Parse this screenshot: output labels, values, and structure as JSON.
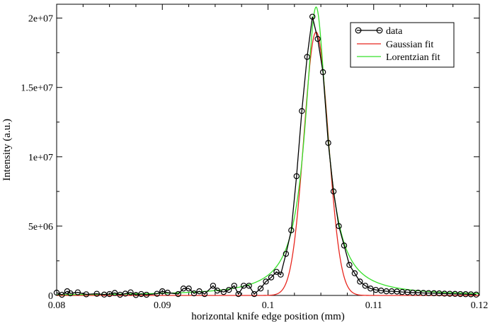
{
  "chart_data": {
    "type": "line",
    "xlabel": "horizontal knife edge position (mm)",
    "ylabel": "Intensity (a.u.)",
    "xlim": [
      0.08,
      0.12
    ],
    "ylim": [
      0,
      21000000
    ],
    "x_ticks": [
      0.08,
      0.09,
      0.1,
      0.11,
      0.12
    ],
    "x_tick_labels": [
      "0.08",
      "0.09",
      "0.1",
      "0.11",
      "0.12"
    ],
    "y_ticks": [
      0,
      5000000,
      10000000,
      15000000,
      20000000
    ],
    "y_tick_labels": [
      "0",
      "5e+06",
      "1e+07",
      "1.5e+07",
      "2e+07"
    ],
    "grid": false,
    "legend_position": "top-right",
    "series": [
      {
        "name": "data",
        "style": "line-with-circle-markers",
        "color": "#000000",
        "points": [
          [
            0.08,
            200000
          ],
          [
            0.0805,
            50000
          ],
          [
            0.081,
            300000
          ],
          [
            0.0813,
            150000
          ],
          [
            0.082,
            220000
          ],
          [
            0.0828,
            80000
          ],
          [
            0.0838,
            120000
          ],
          [
            0.0845,
            60000
          ],
          [
            0.085,
            100000
          ],
          [
            0.0855,
            180000
          ],
          [
            0.086,
            50000
          ],
          [
            0.0865,
            130000
          ],
          [
            0.087,
            220000
          ],
          [
            0.0875,
            30000
          ],
          [
            0.088,
            100000
          ],
          [
            0.0885,
            50000
          ],
          [
            0.0895,
            120000
          ],
          [
            0.09,
            300000
          ],
          [
            0.0905,
            200000
          ],
          [
            0.0915,
            100000
          ],
          [
            0.092,
            500000
          ],
          [
            0.0925,
            500000
          ],
          [
            0.093,
            150000
          ],
          [
            0.0935,
            300000
          ],
          [
            0.094,
            100000
          ],
          [
            0.0948,
            700000
          ],
          [
            0.0952,
            350000
          ],
          [
            0.0958,
            250000
          ],
          [
            0.0963,
            400000
          ],
          [
            0.0968,
            700000
          ],
          [
            0.0972,
            100000
          ],
          [
            0.0977,
            700000
          ],
          [
            0.0982,
            700000
          ],
          [
            0.0987,
            100000
          ],
          [
            0.0993,
            500000
          ],
          [
            0.0998,
            1000000
          ],
          [
            0.1003,
            1300000
          ],
          [
            0.1008,
            1700000
          ],
          [
            0.1012,
            1500000
          ],
          [
            0.1017,
            3000000
          ],
          [
            0.1022,
            4700000
          ],
          [
            0.1027,
            8600000
          ],
          [
            0.1032,
            13300000
          ],
          [
            0.1037,
            17200000
          ],
          [
            0.1042,
            20100000
          ],
          [
            0.1047,
            18500000
          ],
          [
            0.1052,
            16100000
          ],
          [
            0.1057,
            11000000
          ],
          [
            0.1062,
            7500000
          ],
          [
            0.1067,
            5000000
          ],
          [
            0.1072,
            3600000
          ],
          [
            0.1077,
            2200000
          ],
          [
            0.1082,
            1600000
          ],
          [
            0.1087,
            1000000
          ],
          [
            0.1092,
            700000
          ],
          [
            0.1097,
            500000
          ],
          [
            0.1102,
            400000
          ],
          [
            0.1107,
            350000
          ],
          [
            0.1112,
            300000
          ],
          [
            0.1117,
            300000
          ],
          [
            0.1122,
            280000
          ],
          [
            0.1127,
            250000
          ],
          [
            0.1132,
            230000
          ],
          [
            0.1137,
            200000
          ],
          [
            0.1142,
            200000
          ],
          [
            0.1147,
            180000
          ],
          [
            0.1152,
            170000
          ],
          [
            0.1157,
            160000
          ],
          [
            0.1162,
            150000
          ],
          [
            0.1167,
            130000
          ],
          [
            0.1172,
            120000
          ],
          [
            0.1177,
            110000
          ],
          [
            0.1182,
            100000
          ],
          [
            0.1187,
            90000
          ],
          [
            0.1192,
            80000
          ],
          [
            0.1197,
            60000
          ]
        ]
      },
      {
        "name": "Gaussian fit",
        "style": "line",
        "color": "#e8261e",
        "model": "gaussian",
        "params": {
          "amplitude": 19000000,
          "center": 0.10455,
          "sigma": 0.00115
        },
        "x_range": [
          0.08,
          0.12
        ]
      },
      {
        "name": "Lorentzian fit",
        "style": "line",
        "color": "#36e02a",
        "model": "lorentzian",
        "params": {
          "amplitude": 20800000,
          "center": 0.10455,
          "gamma": 0.00125
        },
        "x_range": [
          0.08,
          0.12
        ]
      }
    ]
  }
}
